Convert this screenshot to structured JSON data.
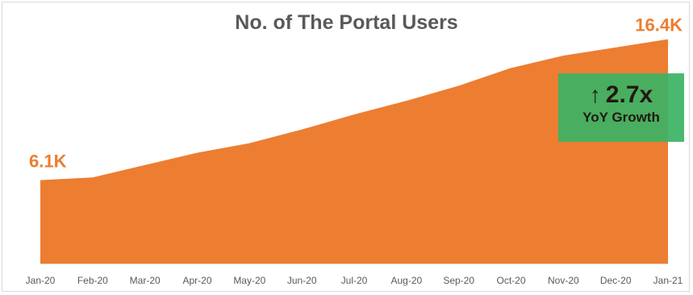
{
  "chart_data": {
    "type": "area",
    "title": "No. of The Portal Users",
    "xlabel": "",
    "ylabel": "",
    "categories": [
      "Jan-20",
      "Feb-20",
      "Mar-20",
      "Apr-20",
      "May-20",
      "Jun-20",
      "Jul-20",
      "Aug-20",
      "Sep-20",
      "Oct-20",
      "Nov-20",
      "Dec-20",
      "Jan-21"
    ],
    "values": [
      6.1,
      6.3,
      7.2,
      8.1,
      8.8,
      9.8,
      10.9,
      11.9,
      13.0,
      14.3,
      15.2,
      15.8,
      16.4
    ],
    "unit": "K",
    "ylim": [
      0,
      17.5
    ],
    "grid": false,
    "legend": "none",
    "color": "#ed7d31",
    "start_label": "6.1K",
    "end_label": "16.4K"
  },
  "callout": {
    "arrow": "↑",
    "value": "2.7x",
    "label": "YoY Growth",
    "color": "#3cb364"
  }
}
